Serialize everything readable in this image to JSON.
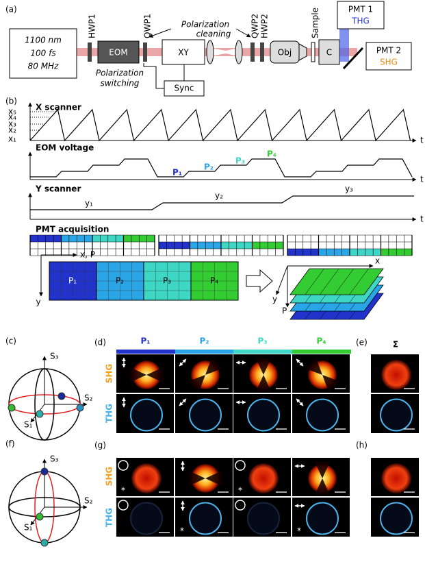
{
  "panel_a": {
    "label": "(a)",
    "laser": [
      "1100 nm",
      "100 fs",
      "80 MHz"
    ],
    "hwp1": "HWP1",
    "eom": "EOM",
    "qwp1": "QWP1",
    "xy": "XY",
    "qwp2": "QWP2",
    "hwp2": "HWP2",
    "obj": "Obj",
    "sample": "Sample",
    "condenser": "C",
    "sync": "Sync",
    "cleaning": [
      "Polarization",
      "cleaning"
    ],
    "switching": [
      "Polarization",
      "switching"
    ],
    "pmt1": {
      "name": "PMT 1",
      "signal": "THG"
    },
    "pmt2": {
      "name": "PMT 2",
      "signal": "SHG"
    }
  },
  "panel_b": {
    "label": "(b)",
    "x_scanner": "X scanner",
    "x_levels": [
      "x₁",
      "x₂",
      "x₃",
      "x₄",
      "x₅"
    ],
    "eom_voltage": "EOM voltage",
    "states": [
      "P₁",
      "P₂",
      "P₃",
      "P₄"
    ],
    "y_scanner": "Y scanner",
    "y_levels": [
      "y₁",
      "y₂",
      "y₃"
    ],
    "time": "t",
    "pmt_acquisition": "PMT acquisition",
    "image_axes": {
      "horizontal": "x, P",
      "vertical": "y"
    },
    "stack_axes": {
      "x": "x",
      "y": "y",
      "p": "P"
    }
  },
  "panel_c": {
    "label": "(c)",
    "axes": [
      "S₁",
      "S₂",
      "S₃"
    ]
  },
  "panel_d": {
    "label": "(d)",
    "rows": [
      "SHG",
      "THG"
    ]
  },
  "panel_e": {
    "label": "(e)",
    "sum": "Σ"
  },
  "panel_f": {
    "label": "(f)",
    "axes": [
      "S₁",
      "S₂",
      "S₃"
    ]
  },
  "panel_g": {
    "label": "(g)",
    "rows": [
      "SHG",
      "THG"
    ],
    "marker": "*"
  },
  "panel_h": {
    "label": "(h)"
  }
}
